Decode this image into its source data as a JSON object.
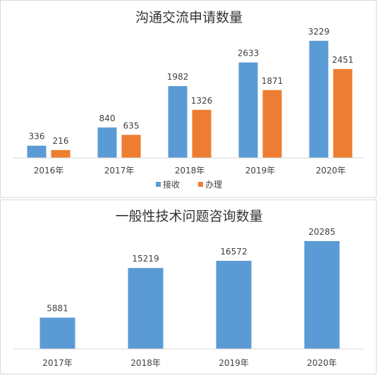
{
  "chart_data": [
    {
      "type": "bar",
      "title": "沟通交流申请数量",
      "categories": [
        "2016年",
        "2017年",
        "2018年",
        "2019年",
        "2020年"
      ],
      "series": [
        {
          "name": "接收",
          "color": "#5b9bd5",
          "values": [
            336,
            840,
            1982,
            2633,
            3229
          ]
        },
        {
          "name": "办理",
          "color": "#ed7d31",
          "values": [
            216,
            635,
            1326,
            1871,
            2451
          ]
        }
      ],
      "ylim": [
        0,
        3500
      ],
      "grid": false,
      "legend": "bottom"
    },
    {
      "type": "bar",
      "title": "一般性技术问题咨询数量",
      "categories": [
        "2017年",
        "2018年",
        "2019年",
        "2020年"
      ],
      "series": [
        {
          "color": "#5b9bd5",
          "values": [
            5881,
            15219,
            16572,
            20285
          ]
        }
      ],
      "ylim": [
        0,
        24000
      ],
      "grid": false,
      "legend": "none"
    }
  ]
}
